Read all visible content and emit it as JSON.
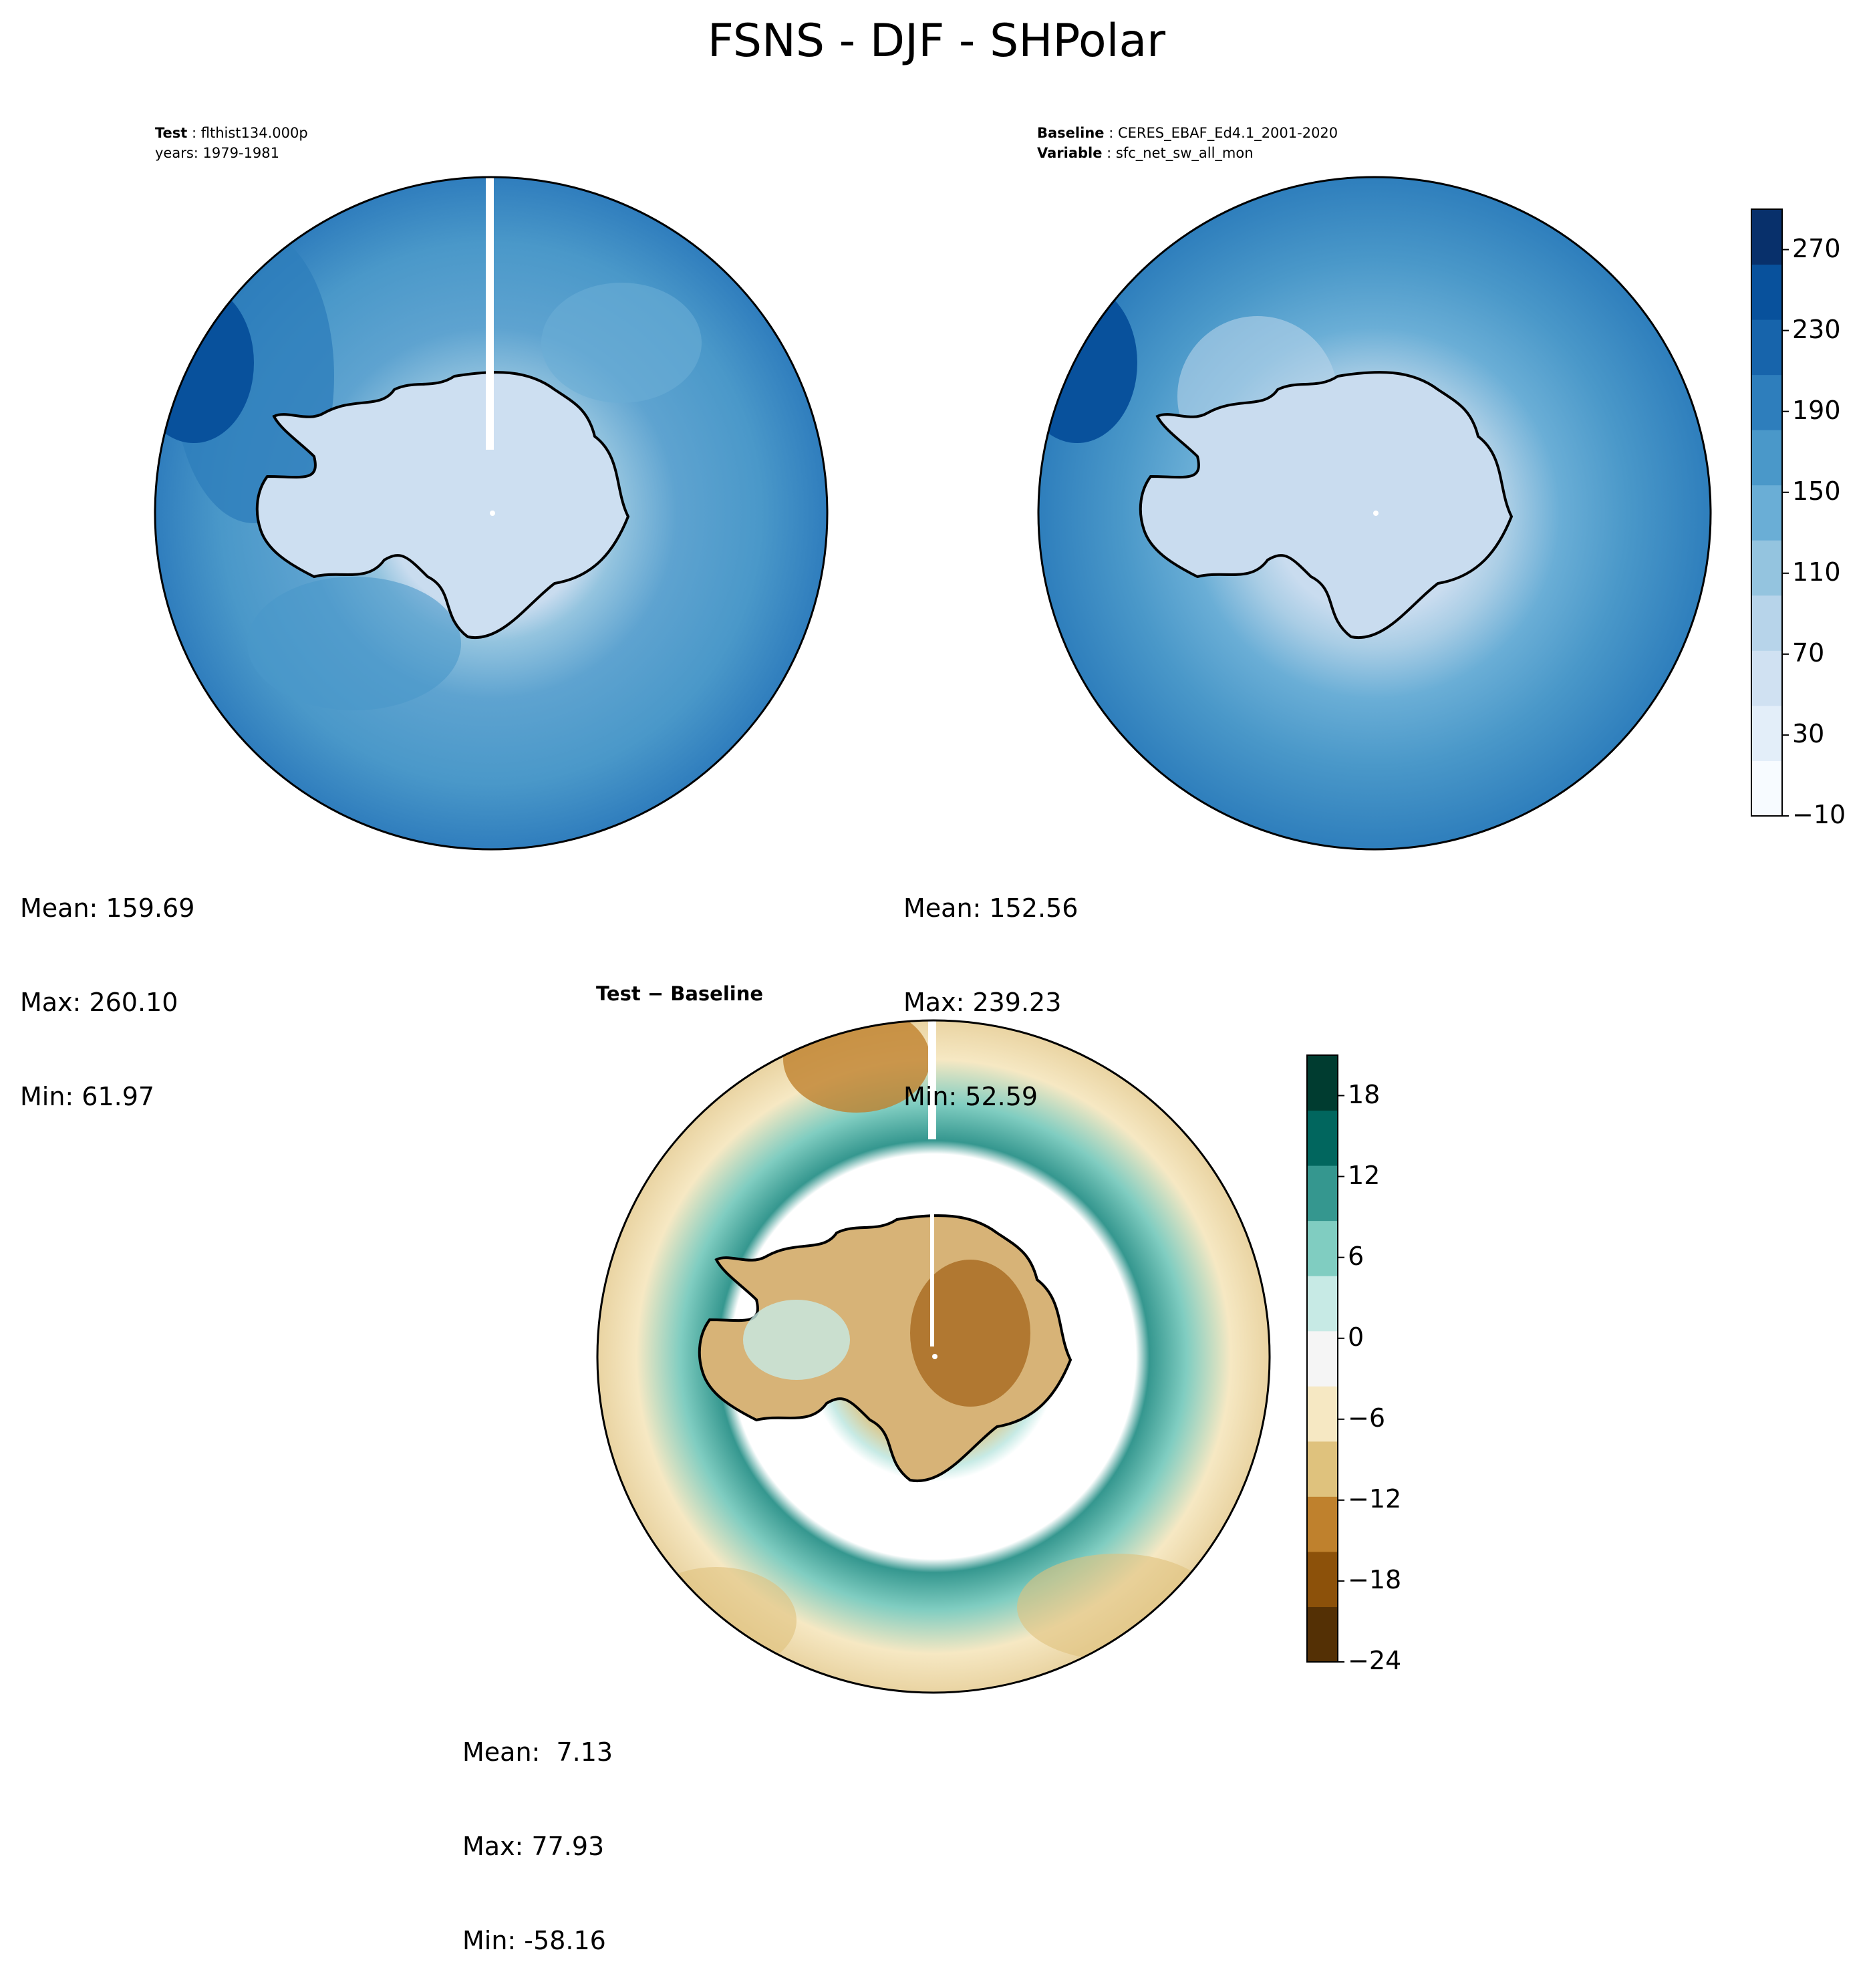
{
  "figure": {
    "title": "FSNS - DJF - SHPolar"
  },
  "panels": {
    "test": {
      "label_bold": "Test",
      "label_value": "flthist134.000p",
      "line2": "years: 1979-1981",
      "stats": {
        "mean": "Mean: 159.69",
        "max": "Max: 260.10",
        "min": "Min: 61.97"
      }
    },
    "baseline": {
      "label_bold": "Baseline",
      "label_value": "CERES_EBAF_Ed4.1_2001-2020",
      "var_bold": "Variable",
      "var_value": "sfc_net_sw_all_mon",
      "stats": {
        "mean": "Mean: 152.56",
        "max": "Max: 239.23",
        "min": "Min: 52.59"
      }
    },
    "diff": {
      "title": "Test − Baseline",
      "stats": {
        "mean": "Mean:  7.13",
        "max": "Max: 77.93",
        "min": "Min: -58.16"
      }
    }
  },
  "chart_data": [
    {
      "type": "heatmap",
      "title": "Test: flthist134.000p, years: 1979-1981",
      "variable": "FSNS",
      "season": "DJF",
      "region": "SHPolar",
      "mean": 159.69,
      "max": 260.1,
      "min": 61.97
    },
    {
      "type": "heatmap",
      "title": "Baseline: CERES_EBAF_Ed4.1_2001-2020, Variable: sfc_net_sw_all_mon",
      "variable": "sfc_net_sw_all_mon",
      "mean": 152.56,
      "max": 239.23,
      "min": 52.59,
      "colorbar": {
        "range": [
          -10,
          290
        ],
        "tick_values": [
          -10,
          30,
          70,
          110,
          150,
          190,
          230,
          270
        ],
        "tick_labels": [
          "−10",
          "30",
          "70",
          "110",
          "150",
          "190",
          "230",
          "270"
        ],
        "colors": [
          "#f7fbff",
          "#e3eef9",
          "#d0e1f2",
          "#b7d4ea",
          "#94c4df",
          "#6aaed6",
          "#4a98c9",
          "#2e7ebc",
          "#1764ab",
          "#08519c",
          "#08306b"
        ]
      }
    },
    {
      "type": "heatmap",
      "title": "Test − Baseline",
      "mean": 7.13,
      "max": 77.93,
      "min": -58.16,
      "colorbar": {
        "range": [
          -24,
          21
        ],
        "tick_values": [
          -24,
          -18,
          -12,
          -6,
          0,
          6,
          12,
          18
        ],
        "tick_labels": [
          "−24",
          "−18",
          "−12",
          "−6",
          "0",
          "6",
          "12",
          "18"
        ],
        "colors": [
          "#543005",
          "#8c510a",
          "#bf812d",
          "#dfc27d",
          "#f6e8c3",
          "#f5f5f5",
          "#c7eae5",
          "#80cdc1",
          "#35978f",
          "#01665e",
          "#003c30"
        ]
      }
    }
  ]
}
